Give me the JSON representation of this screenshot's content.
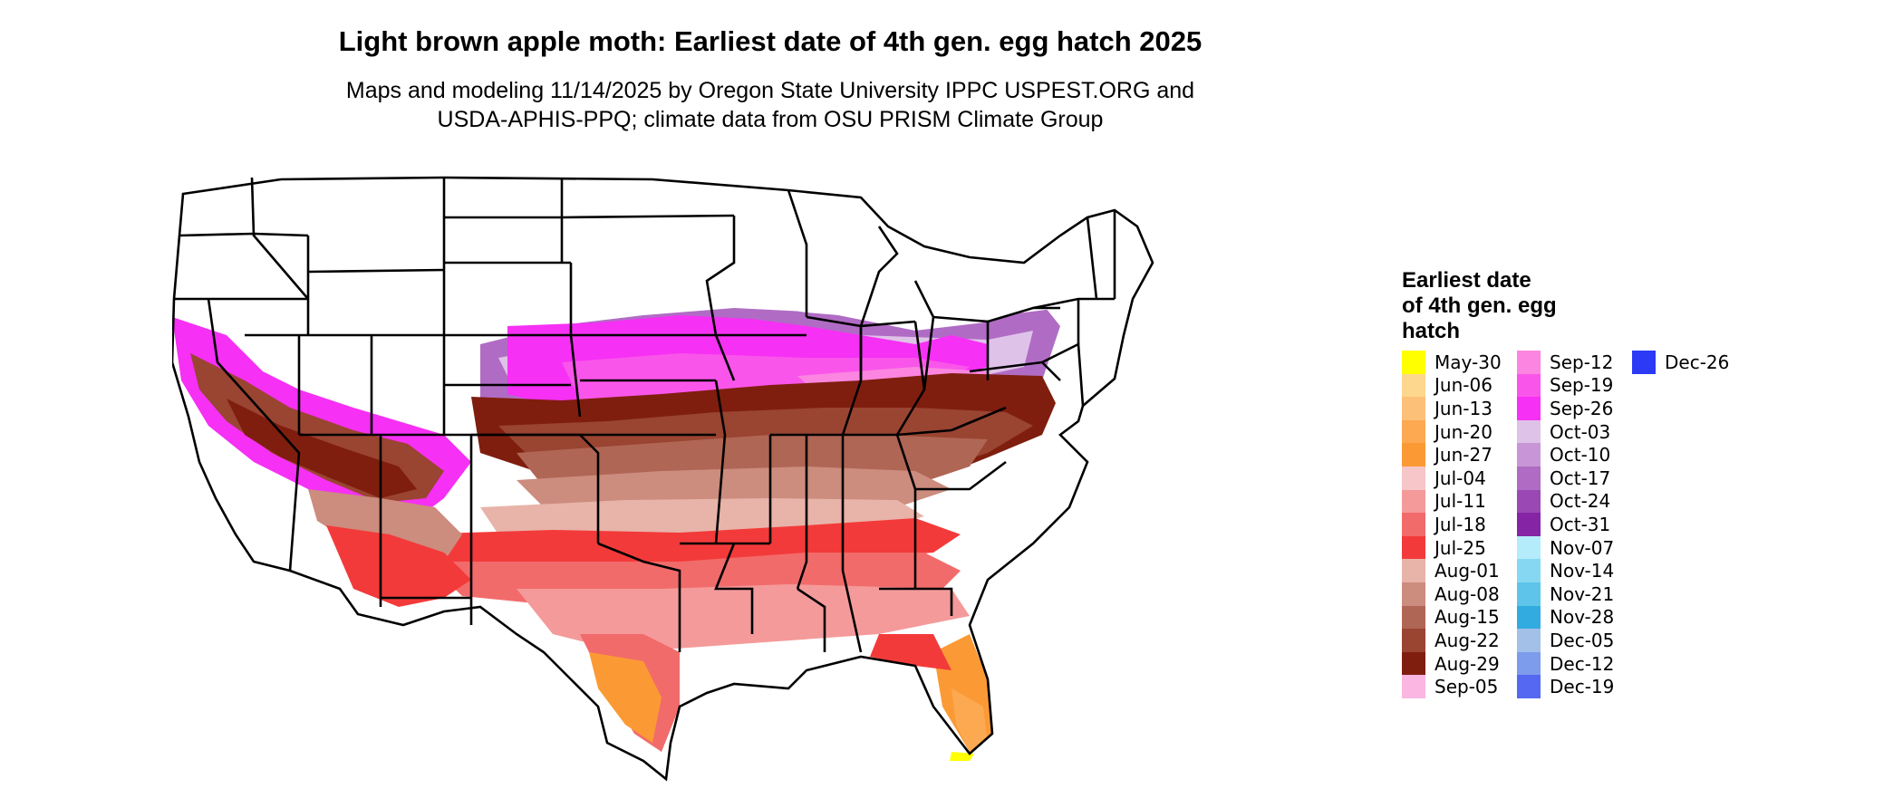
{
  "header": {
    "title": "Light brown apple moth: Earliest date of 4th gen. egg hatch 2025",
    "subtitle_line1": "Maps and modeling 11/14/2025 by Oregon State University IPPC USPEST.ORG and",
    "subtitle_line2": "USDA-APHIS-PPQ; climate data from OSU PRISM Climate Group"
  },
  "legend": {
    "title_line1": "Earliest date",
    "title_line2": "of 4th gen. egg",
    "title_line3": "hatch",
    "items": [
      {
        "label": "May-30",
        "color": "#ffff00"
      },
      {
        "label": "Jun-06",
        "color": "#fdd78e"
      },
      {
        "label": "Jun-13",
        "color": "#fdc078"
      },
      {
        "label": "Jun-20",
        "color": "#fca952"
      },
      {
        "label": "Jun-27",
        "color": "#fb9a35"
      },
      {
        "label": "Jul-04",
        "color": "#f7c6c8"
      },
      {
        "label": "Jul-11",
        "color": "#f49a9a"
      },
      {
        "label": "Jul-18",
        "color": "#f26b6b"
      },
      {
        "label": "Jul-25",
        "color": "#f33a3a"
      },
      {
        "label": "Aug-01",
        "color": "#e8b3a8"
      },
      {
        "label": "Aug-08",
        "color": "#cc8c7e"
      },
      {
        "label": "Aug-15",
        "color": "#b06655"
      },
      {
        "label": "Aug-22",
        "color": "#9a4432"
      },
      {
        "label": "Aug-29",
        "color": "#7f1e0f"
      },
      {
        "label": "Sep-05",
        "color": "#fbb6e2"
      },
      {
        "label": "Sep-12",
        "color": "#fb85e0"
      },
      {
        "label": "Sep-19",
        "color": "#fa55ea"
      },
      {
        "label": "Sep-26",
        "color": "#f630f4"
      },
      {
        "label": "Oct-03",
        "color": "#dfc2e8"
      },
      {
        "label": "Oct-10",
        "color": "#c896d6"
      },
      {
        "label": "Oct-17",
        "color": "#b06cc4"
      },
      {
        "label": "Oct-24",
        "color": "#9a48b4"
      },
      {
        "label": "Oct-31",
        "color": "#8525a6"
      },
      {
        "label": "Nov-07",
        "color": "#b4ecfb"
      },
      {
        "label": "Nov-14",
        "color": "#86d8f2"
      },
      {
        "label": "Nov-21",
        "color": "#5ec4ea"
      },
      {
        "label": "Nov-28",
        "color": "#32ace0"
      },
      {
        "label": "Dec-05",
        "color": "#a2c0e8"
      },
      {
        "label": "Dec-12",
        "color": "#7d9cec"
      },
      {
        "label": "Dec-19",
        "color": "#5468f2"
      },
      {
        "label": "Dec-26",
        "color": "#2c3af6"
      }
    ]
  }
}
